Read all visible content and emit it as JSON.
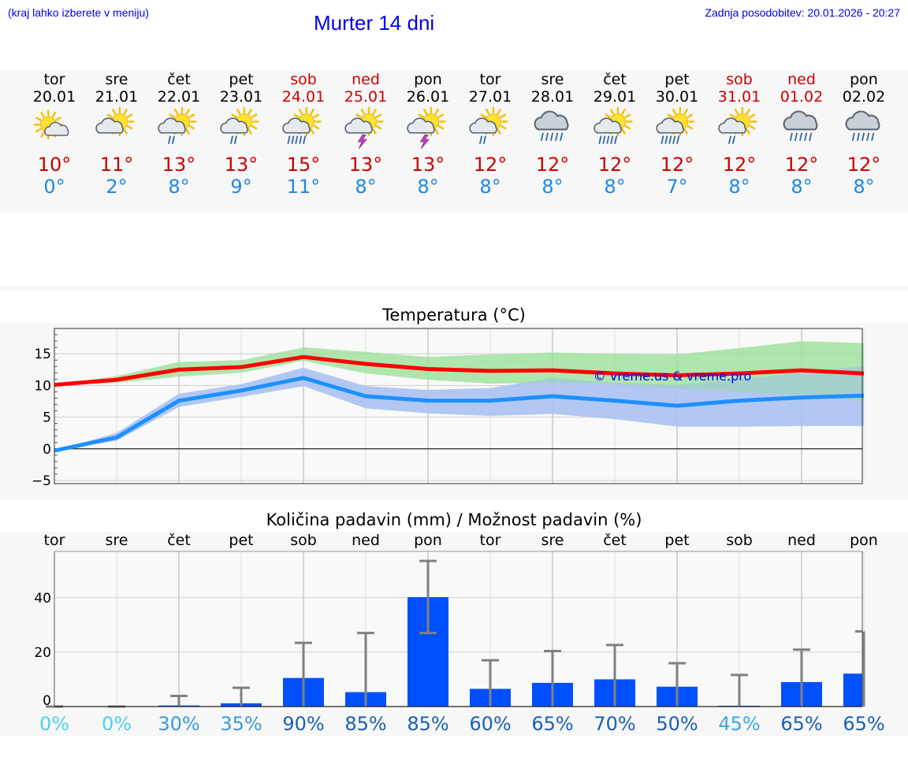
{
  "header": {
    "menu_hint": "(kraj lahko izberete v meniju)",
    "title": "Murter 14 dni",
    "last_update": "Zadnja posodobitev: 20.01.2026 - 20:27"
  },
  "days": [
    {
      "name": "tor",
      "date": "20.01",
      "weekend": false,
      "icon": "sun-with-cloud-icon",
      "tmax": "10°",
      "tmin": "0°"
    },
    {
      "name": "sre",
      "date": "21.01",
      "weekend": false,
      "icon": "sun-behind-cloud-icon",
      "tmax": "11°",
      "tmin": "2°"
    },
    {
      "name": "čet",
      "date": "22.01",
      "weekend": false,
      "icon": "sun-cloud-rain-icon",
      "tmax": "13°",
      "tmin": "8°"
    },
    {
      "name": "pet",
      "date": "23.01",
      "weekend": false,
      "icon": "sun-cloud-rain-icon",
      "tmax": "13°",
      "tmin": "9°"
    },
    {
      "name": "sob",
      "date": "24.01",
      "weekend": true,
      "icon": "sun-cloud-heavy-rain-icon",
      "tmax": "15°",
      "tmin": "11°"
    },
    {
      "name": "ned",
      "date": "25.01",
      "weekend": true,
      "icon": "sun-thunder-icon",
      "tmax": "13°",
      "tmin": "8°"
    },
    {
      "name": "pon",
      "date": "26.01",
      "weekend": false,
      "icon": "sun-thunder-icon",
      "tmax": "13°",
      "tmin": "8°"
    },
    {
      "name": "tor",
      "date": "27.01",
      "weekend": false,
      "icon": "sun-cloud-rain-icon",
      "tmax": "12°",
      "tmin": "8°"
    },
    {
      "name": "sre",
      "date": "28.01",
      "weekend": false,
      "icon": "cloud-heavy-rain-icon",
      "tmax": "12°",
      "tmin": "8°"
    },
    {
      "name": "čet",
      "date": "29.01",
      "weekend": false,
      "icon": "sun-cloud-heavy-rain-icon",
      "tmax": "12°",
      "tmin": "8°"
    },
    {
      "name": "pet",
      "date": "30.01",
      "weekend": false,
      "icon": "sun-cloud-heavy-rain-icon",
      "tmax": "12°",
      "tmin": "7°"
    },
    {
      "name": "sob",
      "date": "31.01",
      "weekend": true,
      "icon": "sun-cloud-rain-icon",
      "tmax": "12°",
      "tmin": "8°"
    },
    {
      "name": "ned",
      "date": "01.02",
      "weekend": true,
      "icon": "cloud-heavy-rain-icon",
      "tmax": "12°",
      "tmin": "8°"
    },
    {
      "name": "pon",
      "date": "02.02",
      "weekend": false,
      "icon": "cloud-heavy-rain-icon",
      "tmax": "12°",
      "tmin": "8°"
    }
  ],
  "colors": {
    "max_line": "#ff0000",
    "min_line": "#1e90ff",
    "max_band": "#98e098",
    "min_band": "#a9c1f2",
    "bar": "#0050ff",
    "error": "#808080",
    "weekend": "#cc0000"
  },
  "chart_data": [
    {
      "type": "line",
      "title": "Temperatura (°C)",
      "xlabel": "",
      "ylabel": "",
      "ylim": [
        -5.5,
        19
      ],
      "yticks": [
        -5,
        0,
        5,
        10,
        15
      ],
      "grid": true,
      "watermark": "© vreme.us & vreme.pro",
      "x": [
        0,
        1,
        2,
        3,
        4,
        5,
        6,
        7,
        8,
        9,
        10,
        11,
        12,
        13
      ],
      "series": [
        {
          "name": "max",
          "values": [
            10.1,
            10.9,
            12.5,
            12.9,
            14.5,
            13.4,
            12.6,
            12.3,
            12.4,
            11.9,
            11.6,
            11.9,
            12.4,
            11.9
          ],
          "band_low": [
            10.1,
            10.4,
            11.4,
            12.0,
            13.9,
            11.9,
            10.9,
            10.3,
            10.4,
            10.2,
            9.5,
            9.0,
            8.5,
            7.5
          ],
          "band_high": [
            10.1,
            11.5,
            13.7,
            14.0,
            16.0,
            15.3,
            14.5,
            14.9,
            15.2,
            15.0,
            14.9,
            15.9,
            17.0,
            16.7
          ]
        },
        {
          "name": "min",
          "values": [
            -0.3,
            1.8,
            7.6,
            9.2,
            11.2,
            8.3,
            7.6,
            7.6,
            8.3,
            7.6,
            6.8,
            7.6,
            8.1,
            8.4
          ],
          "band_low": [
            -0.3,
            1.3,
            6.6,
            8.2,
            9.9,
            6.4,
            5.6,
            5.2,
            5.5,
            4.7,
            3.5,
            3.5,
            3.6,
            3.6
          ],
          "band_high": [
            -0.3,
            2.5,
            8.7,
            10.2,
            12.8,
            9.9,
            9.3,
            9.6,
            11.2,
            10.4,
            10.1,
            11.0,
            12.0,
            13.1
          ]
        }
      ]
    },
    {
      "type": "bar",
      "title": "Količina padavin (mm) / Možnost padavin (%)",
      "xlabel": "",
      "ylabel": "",
      "ylim": [
        0,
        57
      ],
      "yticks": [
        0,
        20,
        40
      ],
      "grid": true,
      "categories": [
        "tor",
        "sre",
        "čet",
        "pet",
        "sob",
        "ned",
        "pon",
        "tor",
        "sre",
        "čet",
        "pet",
        "sob",
        "ned",
        "pon"
      ],
      "values": [
        0,
        0,
        0.4,
        1.2,
        10.5,
        5.3,
        40.2,
        6.5,
        8.7,
        10.0,
        7.3,
        0.3,
        9.0,
        12.1
      ],
      "error_high": [
        0,
        0,
        3.9,
        6.9,
        23.4,
        27.0,
        53.5,
        17.0,
        20.4,
        22.6,
        15.9,
        11.6,
        20.9,
        27.6
      ],
      "error_low": [
        0,
        0,
        0,
        0,
        0,
        0,
        27.0,
        0,
        0,
        0,
        0,
        0,
        0,
        0
      ],
      "probability": [
        "0%",
        "0%",
        "30%",
        "35%",
        "90%",
        "85%",
        "85%",
        "60%",
        "65%",
        "70%",
        "50%",
        "45%",
        "65%",
        "65%"
      ]
    }
  ]
}
